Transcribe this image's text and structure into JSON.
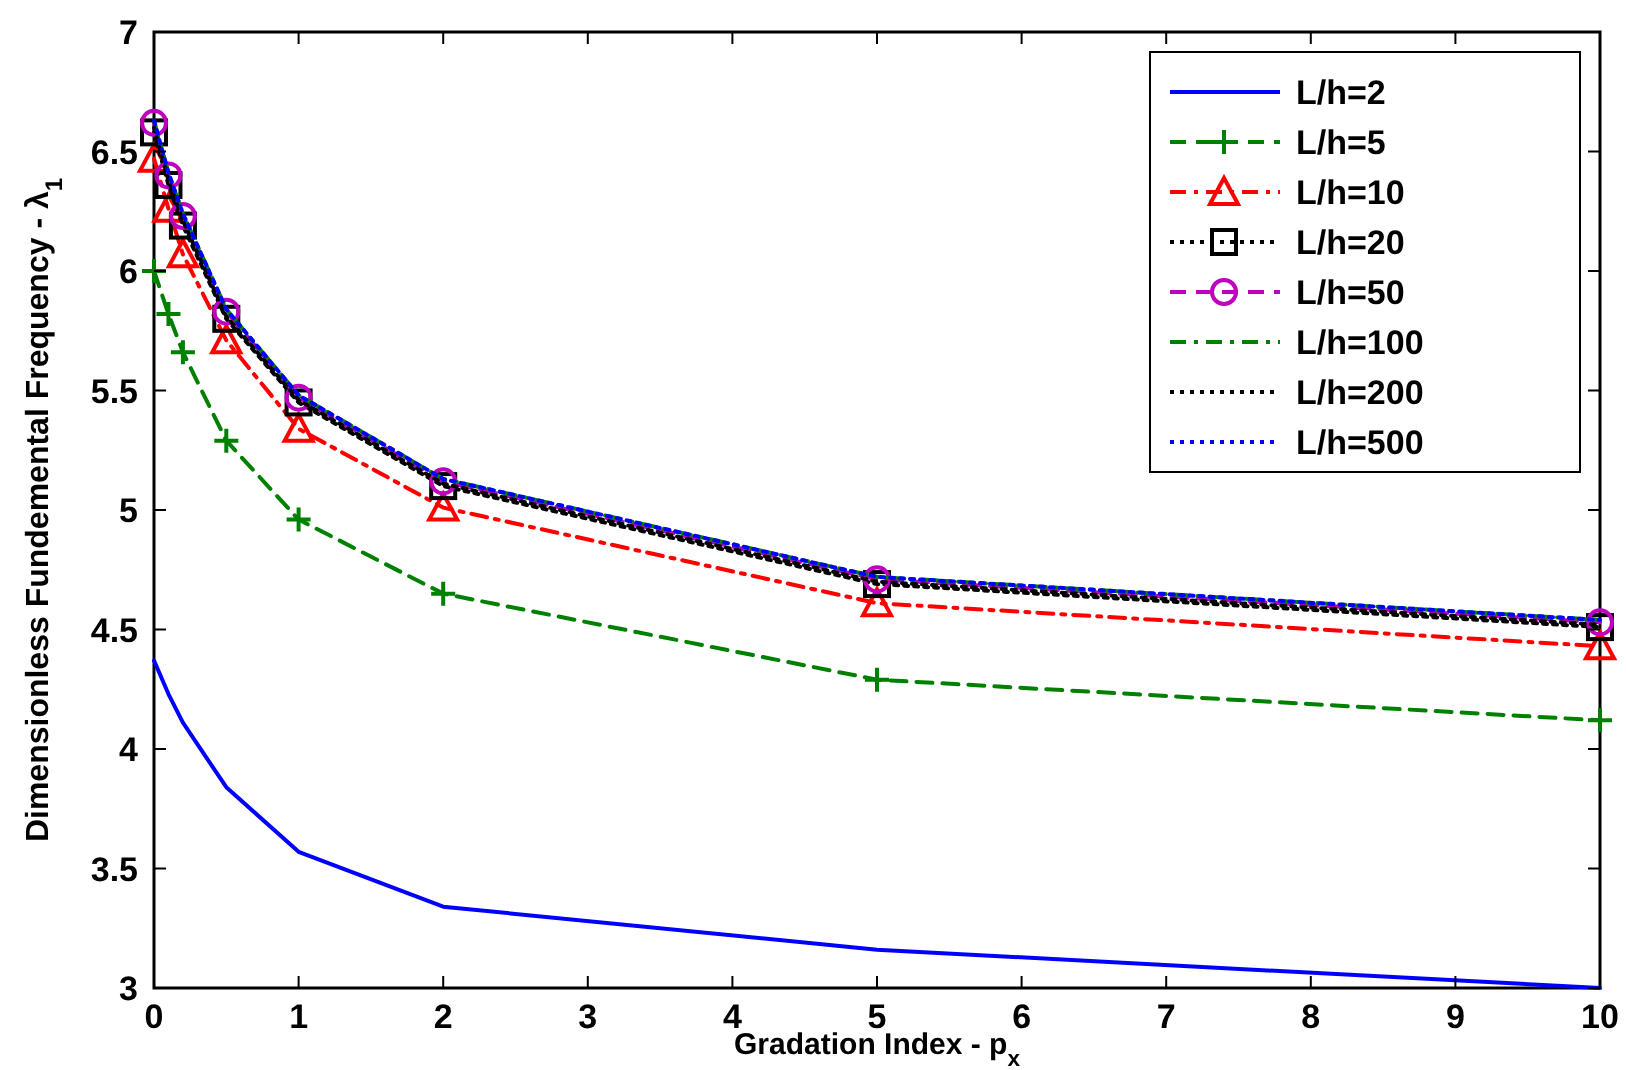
{
  "chart_data": {
    "type": "line",
    "xlabel": "Gradation Index - p$_{x}$",
    "ylabel": "Dimensionless Fundemental Frequency - λ$_{1}$",
    "x": [
      0,
      0.1,
      0.2,
      0.5,
      1,
      2,
      5,
      10
    ],
    "xlim": [
      0,
      10
    ],
    "xticks": [
      0,
      1,
      2,
      3,
      4,
      5,
      6,
      7,
      8,
      9,
      10
    ],
    "ylim": [
      3,
      7
    ],
    "yticks": [
      3,
      3.5,
      4,
      4.5,
      5,
      5.5,
      6,
      6.5,
      7
    ],
    "grid": false,
    "legend": "top right",
    "series": [
      {
        "name": "L/h=2",
        "color": "#0000ff",
        "line_style": "solid",
        "marker": "none",
        "values": [
          4.37,
          4.23,
          4.11,
          3.84,
          3.57,
          3.34,
          3.16,
          3.0
        ]
      },
      {
        "name": "L/h=5",
        "color": "#008000",
        "line_style": "dashed",
        "marker": "cross",
        "values": [
          6.0,
          5.82,
          5.66,
          5.29,
          4.96,
          4.65,
          4.29,
          4.12
        ]
      },
      {
        "name": "L/h=10",
        "color": "#ff0000",
        "line_style": "dashdot",
        "marker": "triangle",
        "values": [
          6.47,
          6.26,
          6.07,
          5.71,
          5.34,
          5.01,
          4.61,
          4.43
        ]
      },
      {
        "name": "L/h=20",
        "color": "#000000",
        "line_style": "dotted",
        "marker": "square",
        "values": [
          6.58,
          6.36,
          6.19,
          5.8,
          5.45,
          5.1,
          4.69,
          4.51
        ]
      },
      {
        "name": "L/h=50",
        "color": "#bf00bf",
        "line_style": "dashed",
        "marker": "circle",
        "values": [
          6.62,
          6.4,
          6.23,
          5.83,
          5.47,
          5.12,
          4.71,
          4.53
        ]
      },
      {
        "name": "L/h=100",
        "color": "#008000",
        "line_style": "dashdot",
        "marker": "none",
        "values": [
          6.63,
          6.41,
          6.24,
          5.84,
          5.48,
          5.13,
          4.72,
          4.54
        ]
      },
      {
        "name": "L/h=200",
        "color": "#000000",
        "line_style": "dotted",
        "marker": "none",
        "values": [
          6.6,
          6.38,
          6.21,
          5.81,
          5.46,
          5.11,
          4.7,
          4.52
        ]
      },
      {
        "name": "L/h=500",
        "color": "#0000ff",
        "line_style": "dotted",
        "marker": "none",
        "values": [
          6.63,
          6.41,
          6.24,
          5.84,
          5.48,
          5.13,
          4.72,
          4.54
        ]
      }
    ]
  }
}
